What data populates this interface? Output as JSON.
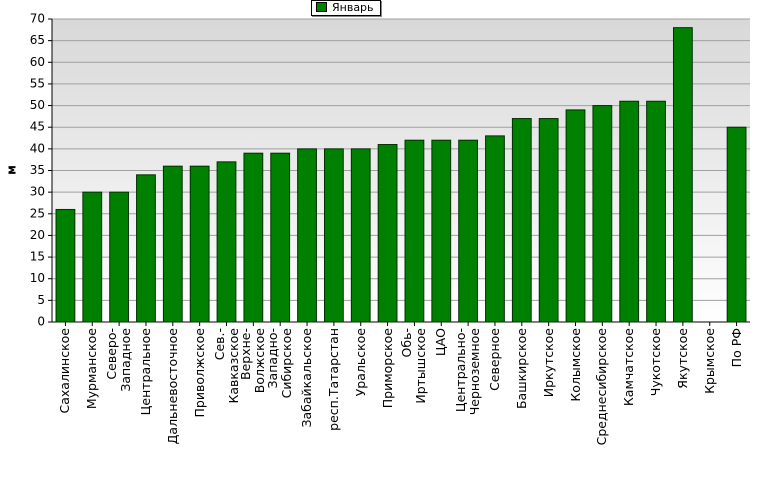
{
  "chart_data": {
    "type": "bar",
    "y_label": "м",
    "categories": [
      "Сахалинское",
      "Мурманское",
      "Северо-\nЗападное",
      "Центральное",
      "Дальневосточное",
      "Приволжское",
      "Сев.-\nКавказское",
      "Верхне-\nВолжское",
      "Западно-\nСибирское",
      "Забайкальское",
      "респ.Татарстан",
      "Уральское",
      "Приморское",
      "Обь-\nИртышское",
      "ЦАО",
      "Центрально-\nЧерноземное",
      "Северное",
      "Башкирское",
      "Иркутское",
      "Колымское",
      "Среднесибирское",
      "Камчатское",
      "Чукотское",
      "Якутское",
      "Крымское",
      "По РФ"
    ],
    "series": [
      {
        "name": "Январь",
        "color": "#008000",
        "values": [
          26,
          30,
          30,
          34,
          36,
          36,
          37,
          39,
          39,
          40,
          40,
          40,
          41,
          42,
          42,
          42,
          43,
          47,
          47,
          49,
          50,
          51,
          51,
          68,
          null,
          45
        ]
      }
    ],
    "ylim": [
      0,
      70
    ],
    "yticks": [
      0,
      5,
      10,
      15,
      20,
      25,
      30,
      35,
      40,
      45,
      50,
      55,
      60,
      65,
      70
    ],
    "grid": true
  }
}
